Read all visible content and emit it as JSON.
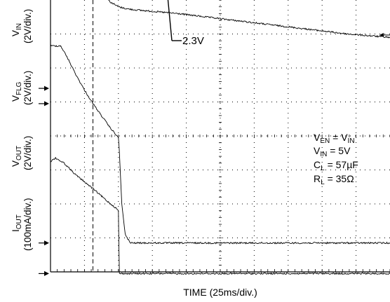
{
  "chart_data": {
    "type": "line",
    "xlabel": "TIME (25ms/div.)",
    "x_range": [
      0,
      200
    ],
    "x_unit": "ms",
    "grid": true,
    "grid_divisions": {
      "x": 10,
      "y": 8
    },
    "trigger_time_ms": 25,
    "channels": [
      {
        "id": "vin",
        "label": {
          "main": "V",
          "sub": "IN",
          "scale": "(2V/div.)"
        },
        "points": [
          [
            0,
            11.3
          ],
          [
            2.5,
            11.2
          ],
          [
            6,
            11.2
          ],
          [
            10,
            11.0
          ],
          [
            15,
            10.6
          ],
          [
            20,
            10.2
          ],
          [
            25,
            9.85
          ],
          [
            30,
            9.55
          ],
          [
            35,
            9.3
          ],
          [
            40,
            9.2
          ],
          [
            45,
            9.16
          ],
          [
            50,
            9.14
          ],
          [
            75,
            9.04
          ],
          [
            100,
            8.92
          ],
          [
            125,
            8.82
          ],
          [
            150,
            8.72
          ],
          [
            175,
            8.6
          ],
          [
            200,
            8.5
          ]
        ]
      },
      {
        "id": "vflg",
        "label": {
          "main": "V",
          "sub": "FLG",
          "scale": "(2V/div.)"
        },
        "points": [
          [
            0,
            9.9
          ],
          [
            2.5,
            9.85
          ],
          [
            6,
            9.85
          ],
          [
            10,
            9.65
          ],
          [
            15,
            9.25
          ],
          [
            20,
            8.85
          ],
          [
            25,
            8.55
          ],
          [
            30,
            8.25
          ],
          [
            35,
            7.95
          ],
          [
            40,
            7.8
          ],
          [
            45,
            7.74
          ],
          [
            50,
            7.71
          ],
          [
            75,
            7.6
          ],
          [
            100,
            7.45
          ],
          [
            125,
            7.3
          ],
          [
            150,
            7.15
          ],
          [
            175,
            7.0
          ],
          [
            200,
            6.9
          ]
        ]
      },
      {
        "id": "vout",
        "label": {
          "main": "V",
          "sub": "OUT",
          "scale": "(2V/div.)"
        },
        "ground_marker": 0,
        "points": [
          [
            0,
            6.65
          ],
          [
            6,
            6.65
          ],
          [
            10,
            6.3
          ],
          [
            15,
            5.8
          ],
          [
            20,
            5.35
          ],
          [
            25,
            4.95
          ],
          [
            30,
            4.6
          ],
          [
            35,
            4.25
          ],
          [
            40,
            3.95
          ],
          [
            40.5,
            3.6
          ],
          [
            42,
            2.0
          ],
          [
            44,
            1.1
          ],
          [
            47,
            0.85
          ],
          [
            60,
            0.85
          ],
          [
            100,
            0.85
          ],
          [
            150,
            0.85
          ],
          [
            200,
            0.85
          ]
        ]
      },
      {
        "id": "iout",
        "label": {
          "main": "I",
          "sub": "OUT",
          "scale": "(100mA/div.)"
        },
        "ground_marker": 0,
        "points": [
          [
            0,
            3.25
          ],
          [
            3,
            3.35
          ],
          [
            8,
            3.2
          ],
          [
            15,
            2.85
          ],
          [
            25,
            2.45
          ],
          [
            33,
            2.1
          ],
          [
            38,
            1.9
          ],
          [
            40,
            1.8
          ],
          [
            40.3,
            0.7
          ],
          [
            40.6,
            -0.05
          ],
          [
            60,
            -0.05
          ],
          [
            100,
            -0.05
          ],
          [
            150,
            -0.05
          ],
          [
            200,
            -0.05
          ]
        ]
      }
    ],
    "annotations": [
      {
        "text": "2.3V",
        "arrow_to_time_ms": 62
      }
    ],
    "conditions": [
      {
        "main": "V",
        "sub": "EN",
        "rest": " = V",
        "sub2": "IN"
      },
      {
        "main": "V",
        "sub": "IN",
        "rest": " = 5V",
        "sub2": ""
      },
      {
        "main": "C",
        "sub": "L",
        "rest": " = 57µF",
        "sub2": ""
      },
      {
        "main": "R",
        "sub": "L",
        "rest": " = 35Ω",
        "sub2": ""
      }
    ]
  }
}
